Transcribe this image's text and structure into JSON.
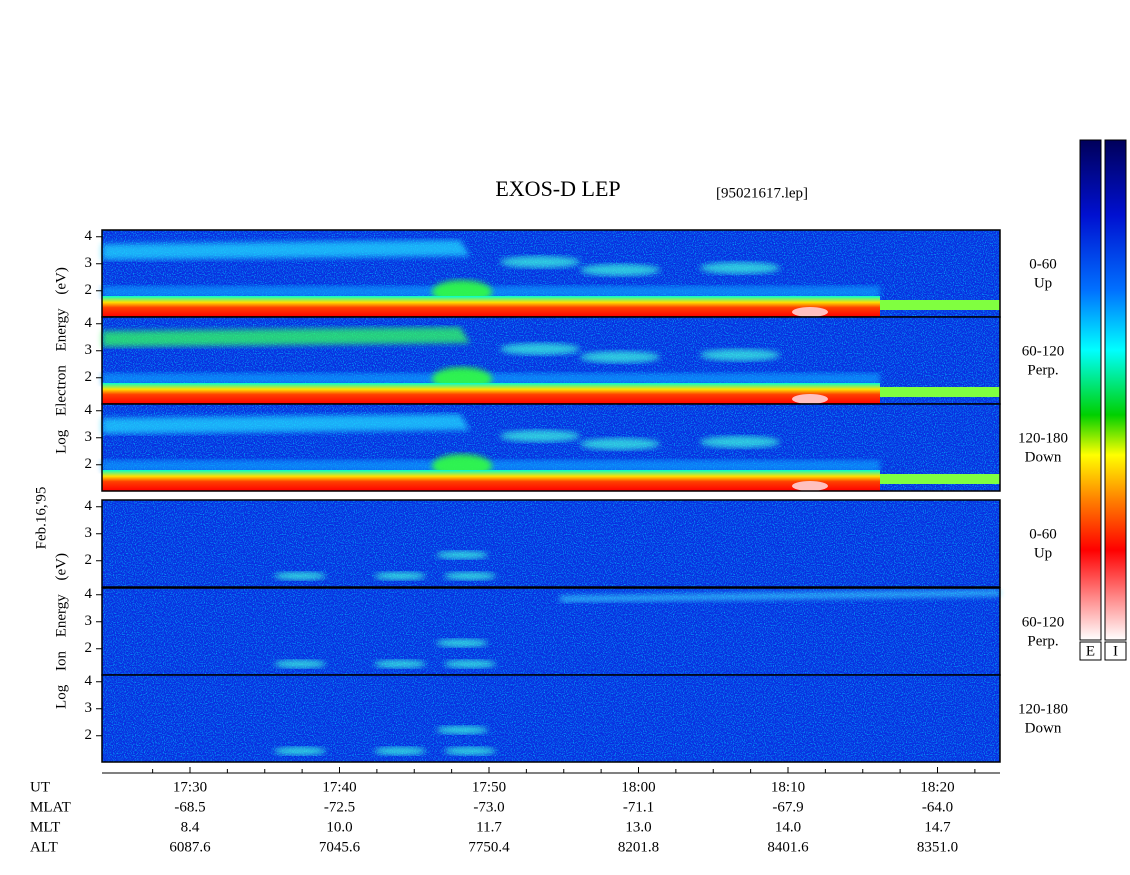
{
  "title": "EXOS-D LEP",
  "file": "[95021617.lep]",
  "date": "Feb.16,'95",
  "groups": [
    {
      "axis_label": "Log  Electron  Energy  (eV)"
    },
    {
      "axis_label": "Log  Ion  Energy  (eV)"
    }
  ],
  "panels": [
    {
      "angle": "0-60",
      "direction": "Up"
    },
    {
      "angle": "60-120",
      "direction": "Perp."
    },
    {
      "angle": "120-180",
      "direction": "Down"
    }
  ],
  "yticks": [
    2,
    3,
    4
  ],
  "ephemeris": [
    {
      "label": "UT",
      "values": [
        "17:30",
        "17:40",
        "17:50",
        "18:00",
        "18:10",
        "18:20"
      ]
    },
    {
      "label": "MLAT",
      "values": [
        "-68.5",
        "-72.5",
        "-73.0",
        "-71.1",
        "-67.9",
        "-64.0"
      ]
    },
    {
      "label": "MLT",
      "values": [
        "8.4",
        "10.0",
        "11.7",
        "13.0",
        "14.0",
        "14.7"
      ]
    },
    {
      "label": "ALT",
      "values": [
        "6087.6",
        "7045.6",
        "7750.4",
        "8201.8",
        "8401.6",
        "8351.0"
      ]
    }
  ],
  "colorbar_labels": [
    "E",
    "I"
  ]
}
